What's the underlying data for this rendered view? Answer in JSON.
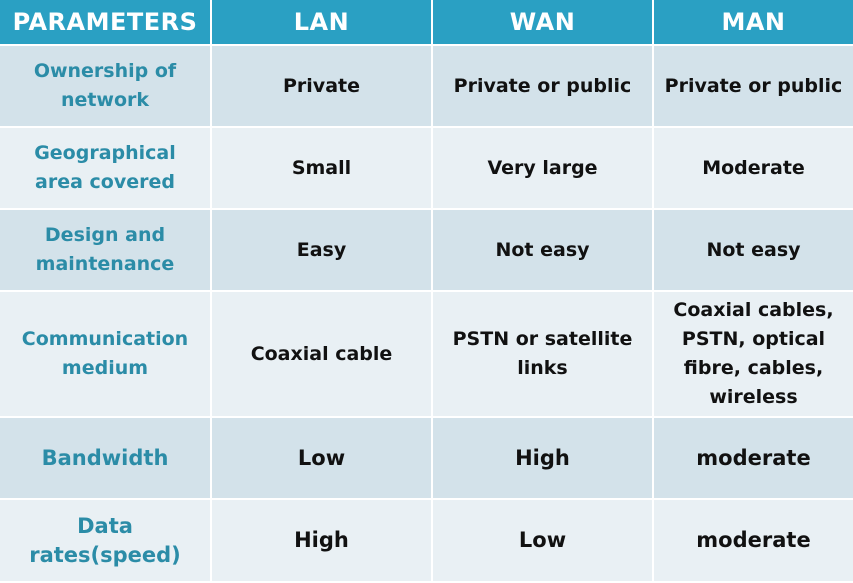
{
  "headers": [
    "PARAMETERS",
    "LAN",
    "WAN",
    "MAN"
  ],
  "rows": [
    {
      "parameter": "Ownership of\nnetwork",
      "lan": "Private",
      "wan": "Private or public",
      "man": "Private or public"
    },
    {
      "parameter": "Geographical\narea covered",
      "lan": "Small",
      "wan": "Very large",
      "man": "Moderate"
    },
    {
      "parameter": "Design and\nmaintenance",
      "lan": "Easy",
      "wan": "Not easy",
      "man": "Not easy"
    },
    {
      "parameter": "Communication\nmedium",
      "lan": "Coaxial cable",
      "wan": "PSTN or satellite\nlinks",
      "man": "Coaxial cables,\nPSTN, optical\nfibre, cables,\nwireless"
    },
    {
      "parameter": "Bandwidth",
      "lan": "Low",
      "wan": "High",
      "man": "moderate"
    },
    {
      "parameter": "Data\nrates(speed)",
      "lan": "High",
      "wan": "Low",
      "man": "moderate"
    }
  ]
}
